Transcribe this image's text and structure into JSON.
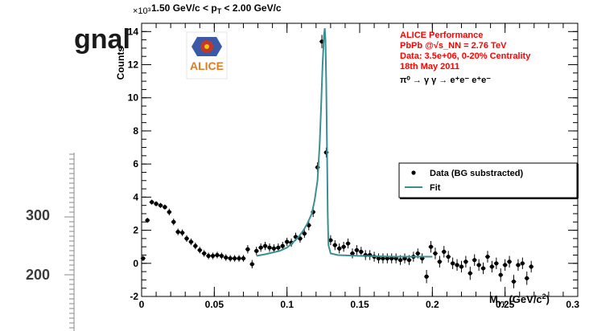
{
  "background_slide": {
    "title_fragment": "gnal",
    "tick_labels": [
      "300",
      "200"
    ]
  },
  "chart_data": {
    "type": "scatter",
    "title": "1.50 GeV/c < p_T < 2.00 GeV/c",
    "xlabel": "M_γγ (GeV/c²)",
    "ylabel": "Counts",
    "y_exponent": "×10³",
    "xlim": [
      0,
      0.3
    ],
    "ylim": [
      -2,
      14.5
    ],
    "x_ticks": [
      0,
      0.05,
      0.1,
      0.15,
      0.2,
      0.25,
      0.3
    ],
    "x_tick_labels": [
      "0",
      "0.05",
      "0.1",
      "0.15",
      "0.2",
      "0.25",
      "0.3"
    ],
    "y_ticks": [
      -2,
      0,
      2,
      4,
      6,
      8,
      10,
      12,
      14
    ],
    "y_tick_labels": [
      "-2",
      "0",
      "2",
      "4",
      "6",
      "8",
      "10",
      "12",
      "14"
    ],
    "annotation_lines": [
      "ALICE Performance",
      "PbPb @√s_NN = 2.76 TeV",
      "Data: 3.5e+06,  0-20% Centrality",
      "18th May 2011",
      "π⁰ → γ γ → e⁺e⁻  e⁺e⁻"
    ],
    "logo_text": "ALICE",
    "legend_position": "right",
    "series": [
      {
        "name": "Data (BG substracted)",
        "style": "points-with-errors",
        "color": "#000000",
        "points": [
          [
            0.001,
            0.3,
            0.15
          ],
          [
            0.004,
            2.6,
            0.15
          ],
          [
            0.007,
            3.7,
            0.15
          ],
          [
            0.01,
            3.6,
            0.15
          ],
          [
            0.013,
            3.5,
            0.15
          ],
          [
            0.016,
            3.4,
            0.15
          ],
          [
            0.019,
            3.1,
            0.2
          ],
          [
            0.022,
            2.5,
            0.2
          ],
          [
            0.025,
            1.9,
            0.2
          ],
          [
            0.028,
            1.85,
            0.2
          ],
          [
            0.031,
            1.5,
            0.2
          ],
          [
            0.034,
            1.3,
            0.2
          ],
          [
            0.037,
            1.05,
            0.2
          ],
          [
            0.04,
            0.8,
            0.2
          ],
          [
            0.043,
            0.6,
            0.2
          ],
          [
            0.046,
            0.45,
            0.2
          ],
          [
            0.049,
            0.45,
            0.2
          ],
          [
            0.052,
            0.5,
            0.2
          ],
          [
            0.055,
            0.45,
            0.2
          ],
          [
            0.058,
            0.35,
            0.2
          ],
          [
            0.061,
            0.3,
            0.2
          ],
          [
            0.064,
            0.3,
            0.2
          ],
          [
            0.067,
            0.3,
            0.2
          ],
          [
            0.07,
            0.3,
            0.2
          ],
          [
            0.073,
            0.85,
            0.25
          ],
          [
            0.076,
            -0.05,
            0.25
          ],
          [
            0.079,
            0.75,
            0.25
          ],
          [
            0.082,
            0.95,
            0.25
          ],
          [
            0.085,
            1.05,
            0.25
          ],
          [
            0.088,
            0.95,
            0.25
          ],
          [
            0.091,
            0.9,
            0.25
          ],
          [
            0.094,
            0.95,
            0.25
          ],
          [
            0.097,
            1.05,
            0.25
          ],
          [
            0.1,
            1.3,
            0.25
          ],
          [
            0.103,
            1.25,
            0.25
          ],
          [
            0.106,
            1.6,
            0.25
          ],
          [
            0.109,
            1.5,
            0.25
          ],
          [
            0.112,
            1.8,
            0.25
          ],
          [
            0.115,
            2.3,
            0.3
          ],
          [
            0.118,
            3.1,
            0.3
          ],
          [
            0.121,
            5.8,
            0.3
          ],
          [
            0.124,
            13.4,
            0.4
          ],
          [
            0.127,
            6.7,
            0.3
          ],
          [
            0.13,
            1.4,
            0.3
          ],
          [
            0.133,
            1.1,
            0.3
          ],
          [
            0.136,
            0.9,
            0.3
          ],
          [
            0.139,
            1.0,
            0.3
          ],
          [
            0.142,
            1.2,
            0.3
          ],
          [
            0.145,
            0.6,
            0.3
          ],
          [
            0.148,
            0.8,
            0.3
          ],
          [
            0.151,
            0.7,
            0.3
          ],
          [
            0.154,
            0.5,
            0.3
          ],
          [
            0.157,
            0.5,
            0.3
          ],
          [
            0.16,
            0.4,
            0.3
          ],
          [
            0.163,
            0.3,
            0.3
          ],
          [
            0.166,
            0.3,
            0.3
          ],
          [
            0.169,
            0.3,
            0.3
          ],
          [
            0.172,
            0.3,
            0.3
          ],
          [
            0.175,
            0.3,
            0.3
          ],
          [
            0.178,
            0.2,
            0.3
          ],
          [
            0.181,
            0.3,
            0.3
          ],
          [
            0.184,
            0.2,
            0.3
          ],
          [
            0.187,
            0.4,
            0.3
          ],
          [
            0.19,
            0.6,
            0.3
          ],
          [
            0.193,
            0.3,
            0.3
          ],
          [
            0.196,
            -0.8,
            0.4
          ],
          [
            0.199,
            1.0,
            0.35
          ],
          [
            0.202,
            0.6,
            0.35
          ],
          [
            0.205,
            0.1,
            0.35
          ],
          [
            0.208,
            0.7,
            0.35
          ],
          [
            0.211,
            0.4,
            0.35
          ],
          [
            0.214,
            0.0,
            0.35
          ],
          [
            0.217,
            -0.1,
            0.35
          ],
          [
            0.22,
            -0.2,
            0.35
          ],
          [
            0.223,
            0.1,
            0.35
          ],
          [
            0.226,
            -0.6,
            0.4
          ],
          [
            0.229,
            0.2,
            0.35
          ],
          [
            0.232,
            -0.1,
            0.35
          ],
          [
            0.235,
            -0.3,
            0.35
          ],
          [
            0.238,
            0.4,
            0.35
          ],
          [
            0.241,
            -0.2,
            0.35
          ],
          [
            0.244,
            0.0,
            0.35
          ],
          [
            0.247,
            -0.7,
            0.4
          ],
          [
            0.25,
            -0.1,
            0.35
          ],
          [
            0.253,
            0.1,
            0.35
          ],
          [
            0.256,
            -1.1,
            0.4
          ],
          [
            0.259,
            -0.1,
            0.35
          ],
          [
            0.262,
            0.0,
            0.35
          ],
          [
            0.265,
            -0.9,
            0.4
          ],
          [
            0.268,
            -0.2,
            0.35
          ]
        ]
      },
      {
        "name": "Fit",
        "style": "line",
        "color": "#3a8f93",
        "points": [
          [
            0.079,
            0.45
          ],
          [
            0.085,
            0.55
          ],
          [
            0.09,
            0.65
          ],
          [
            0.095,
            0.75
          ],
          [
            0.1,
            0.95
          ],
          [
            0.104,
            1.25
          ],
          [
            0.108,
            1.6
          ],
          [
            0.111,
            1.95
          ],
          [
            0.114,
            2.4
          ],
          [
            0.117,
            3.0
          ],
          [
            0.119,
            3.8
          ],
          [
            0.121,
            5.0
          ],
          [
            0.1225,
            7.2
          ],
          [
            0.1235,
            9.5
          ],
          [
            0.1245,
            12.0
          ],
          [
            0.1255,
            13.8
          ],
          [
            0.126,
            14.2
          ],
          [
            0.1265,
            13.5
          ],
          [
            0.127,
            11.0
          ],
          [
            0.1275,
            7.0
          ],
          [
            0.128,
            3.0
          ],
          [
            0.1285,
            1.1
          ],
          [
            0.13,
            0.6
          ],
          [
            0.135,
            0.5
          ],
          [
            0.15,
            0.45
          ],
          [
            0.175,
            0.4
          ],
          [
            0.2,
            0.4
          ]
        ]
      }
    ]
  }
}
